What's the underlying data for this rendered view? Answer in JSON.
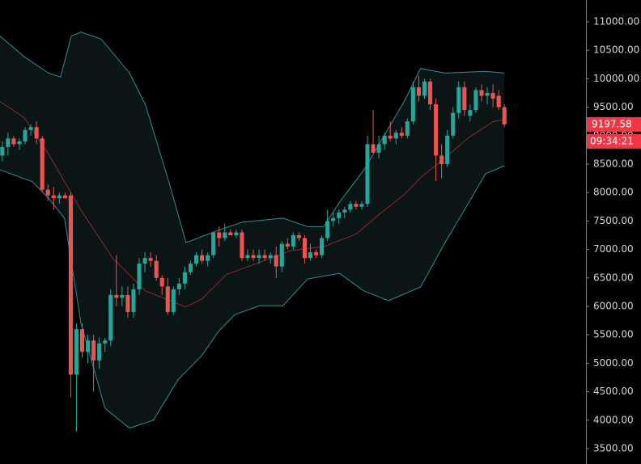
{
  "chart_data": {
    "type": "candlestick",
    "xlim": [
      -0.4,
      102.3
    ],
    "ylim": [
      3230,
      11383.5
    ],
    "yticks": [
      {
        "value": 3500,
        "label": "3500.00"
      },
      {
        "value": 4000,
        "label": "4000.00"
      },
      {
        "value": 4500,
        "label": "4500.00"
      },
      {
        "value": 5000,
        "label": "5000.00"
      },
      {
        "value": 5500,
        "label": "5500.00"
      },
      {
        "value": 6000,
        "label": "6000.00"
      },
      {
        "value": 6500,
        "label": "6500.00"
      },
      {
        "value": 7000,
        "label": "7000.00"
      },
      {
        "value": 7500,
        "label": "7500.00"
      },
      {
        "value": 8000,
        "label": "8000.00"
      },
      {
        "value": 8500,
        "label": "8500.00"
      },
      {
        "value": 9000,
        "label": "9000.00"
      },
      {
        "value": 9500,
        "label": "9500.00"
      },
      {
        "value": 10000,
        "label": "10000.00"
      },
      {
        "value": 10500,
        "label": "10500.00"
      },
      {
        "value": 11000,
        "label": "11000.00"
      }
    ],
    "up_color": "#26a69a",
    "down_color": "#ef5350",
    "open": [
      8650,
      8800,
      8950,
      8850,
      8900,
      9100,
      9150,
      8950,
      8050,
      7950,
      7900,
      7950,
      7950,
      4800,
      5600,
      5200,
      5400,
      5050,
      5350,
      5400,
      6200,
      6150,
      6200,
      5900,
      6300,
      6750,
      6850,
      6800,
      6500,
      6350,
      5900,
      6300,
      6400,
      6600,
      6750,
      6900,
      6800,
      6900,
      7300,
      7200,
      7300,
      7250,
      7300,
      6850,
      6900,
      6850,
      6900,
      6850,
      6900,
      6700,
      7100,
      7050,
      7250,
      7200,
      6850,
      6950,
      6900,
      7200,
      7500,
      7550,
      7650,
      7700,
      7800,
      7750,
      7800,
      8850,
      8700,
      8850,
      9000,
      8950,
      9050,
      9000,
      9250,
      9850,
      9700,
      9950,
      9550,
      8650,
      8500,
      9000,
      9400,
      9850,
      9350,
      9450,
      9800,
      9700,
      9750,
      9700,
      9500
    ],
    "high": [
      8900,
      9050,
      9000,
      8950,
      9150,
      9200,
      9250,
      9000,
      8150,
      8100,
      8000,
      8000,
      8000,
      5700,
      5700,
      5500,
      5500,
      5450,
      5450,
      6300,
      6900,
      6350,
      6350,
      6400,
      6850,
      6950,
      6950,
      6900,
      6550,
      6500,
      6350,
      6500,
      6700,
      6800,
      6950,
      7000,
      6950,
      7300,
      7400,
      7450,
      7350,
      7350,
      7350,
      7000,
      7000,
      7000,
      7000,
      6950,
      7050,
      7150,
      7200,
      7300,
      7300,
      7250,
      7100,
      7000,
      7250,
      7700,
      7650,
      7700,
      7750,
      7850,
      7850,
      7850,
      9000,
      9450,
      9000,
      9050,
      9250,
      9100,
      9150,
      9300,
      9950,
      10050,
      10000,
      10000,
      9650,
      8850,
      9100,
      9500,
      9950,
      9950,
      9550,
      9850,
      9900,
      9850,
      9900,
      9800,
      9550
    ],
    "low": [
      8550,
      8650,
      8800,
      8750,
      8850,
      9000,
      8850,
      8000,
      7850,
      7700,
      7800,
      7900,
      4400,
      3800,
      5100,
      5000,
      4500,
      4900,
      5200,
      5300,
      6000,
      6000,
      5800,
      5800,
      6200,
      6600,
      6700,
      6450,
      6200,
      5850,
      5850,
      6200,
      6300,
      6550,
      6700,
      6750,
      6700,
      6850,
      7050,
      7150,
      7250,
      7200,
      6800,
      6800,
      6800,
      6750,
      6800,
      6750,
      6500,
      6600,
      7000,
      7000,
      7150,
      6750,
      6800,
      6850,
      6850,
      7150,
      7400,
      7450,
      7550,
      7650,
      7700,
      7700,
      7750,
      8700,
      8600,
      8750,
      8900,
      8850,
      8950,
      8950,
      9200,
      9600,
      9650,
      9450,
      8200,
      8250,
      8450,
      8950,
      9300,
      9350,
      9250,
      9400,
      9600,
      9550,
      9500,
      9450,
      9150
    ],
    "close": [
      8800,
      8950,
      8850,
      8900,
      9100,
      9150,
      8950,
      8050,
      7950,
      7900,
      7950,
      7900,
      4800,
      5600,
      5200,
      5400,
      5050,
      5350,
      5400,
      6200,
      6150,
      6200,
      5900,
      6300,
      6750,
      6850,
      6800,
      6500,
      6350,
      5900,
      6300,
      6400,
      6600,
      6750,
      6900,
      6800,
      6900,
      7300,
      7200,
      7300,
      7250,
      7300,
      6850,
      6900,
      6850,
      6900,
      6850,
      6900,
      6700,
      7100,
      7050,
      7250,
      7200,
      6850,
      6950,
      6900,
      7200,
      7500,
      7550,
      7650,
      7700,
      7800,
      7750,
      7800,
      8850,
      8700,
      8850,
      9000,
      8950,
      9050,
      9000,
      9250,
      9850,
      9700,
      9950,
      9550,
      8650,
      8500,
      9000,
      9400,
      9850,
      9450,
      9450,
      9800,
      9700,
      9750,
      9650,
      9500,
      9197.58
    ],
    "band_fill": "#0b1515",
    "bands": [
      {
        "color": "#2f8d93",
        "x": [
          -0.4,
          3.8,
          8.1,
          10.2,
          12.1,
          13.8,
          17.3,
          22.3,
          25.1,
          29.4,
          32.2,
          34.3,
          37.9,
          42.1,
          49.2,
          53.5,
          56.3,
          59.1,
          63.4,
          70.5,
          73.3,
          77.6,
          84.7,
          88
        ],
        "values": [
          10750,
          10390,
          10100,
          10030,
          10750,
          10820,
          10700,
          10100,
          9540,
          8120,
          7120,
          7200,
          7340,
          7480,
          7550,
          7400,
          7400,
          7830,
          8400,
          9610,
          10180,
          10100,
          10130,
          10100
        ]
      },
      {
        "color": "#8a2c2a",
        "x": [
          -0.4,
          3.8,
          8.1,
          13.8,
          19.4,
          25.1,
          32.2,
          35,
          39.3,
          45,
          50.6,
          56.3,
          62,
          66.1,
          70.5,
          73.3,
          77.6,
          81.8,
          86.1,
          88
        ],
        "values": [
          9600,
          9320,
          8680,
          7690,
          6840,
          6270,
          5990,
          6130,
          6560,
          6770,
          6980,
          7050,
          7270,
          7620,
          7970,
          8260,
          8610,
          8970,
          9250,
          9280
        ]
      },
      {
        "color": "#2f8d93",
        "x": [
          -0.4,
          5.3,
          8.1,
          10.9,
          13.8,
          18,
          22.3,
          26.5,
          30.8,
          35,
          37.9,
          40.7,
          45,
          49.2,
          53.5,
          59.1,
          63.4,
          67.7,
          73.3,
          77.6,
          81.8,
          84.7,
          88
        ],
        "values": [
          8400,
          8190,
          7900,
          7550,
          5700,
          4210,
          3860,
          4000,
          4710,
          5140,
          5560,
          5850,
          6010,
          6010,
          6480,
          6580,
          6270,
          6100,
          6340,
          7120,
          7830,
          8330,
          8470
        ]
      }
    ],
    "last_price": {
      "value": 9197.58,
      "label": "9197.58"
    },
    "countdown": "09:34:21"
  }
}
